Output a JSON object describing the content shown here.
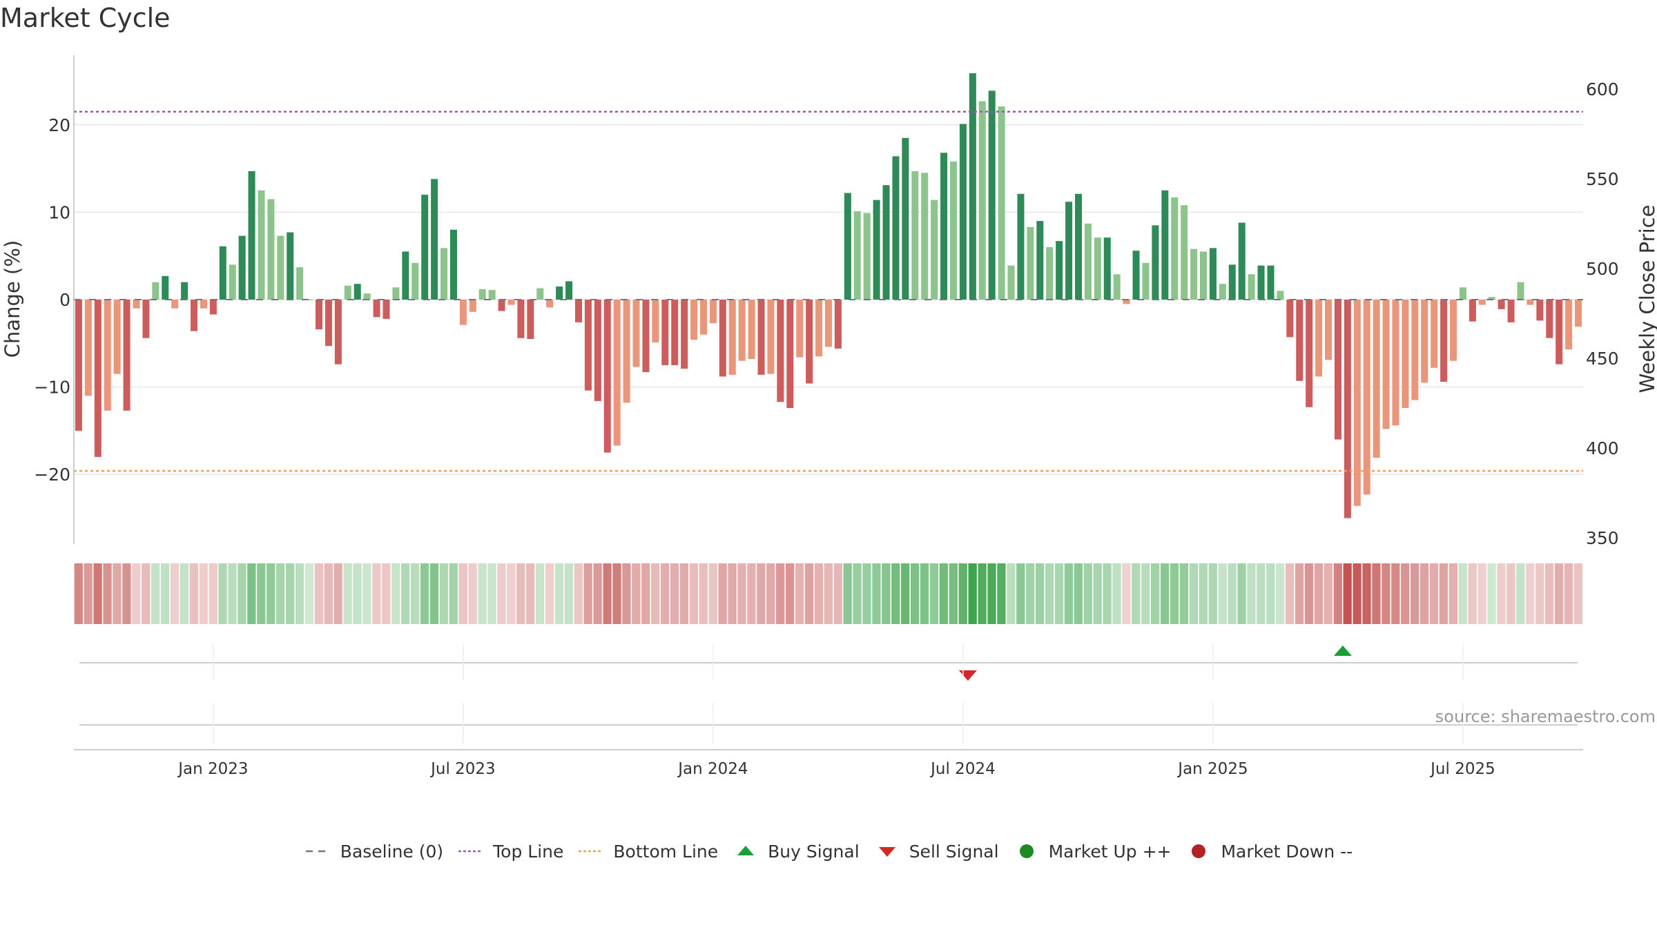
{
  "title": "Market Cycle",
  "source_label": "source: sharemaestro.com",
  "colors": {
    "up_dark": "#2e8b57",
    "up_light": "#8cc48c",
    "down_dark": "#cd5c5c",
    "down_light": "#e9967a",
    "top_line": "#9b59b6",
    "bottom_line": "#f0a050",
    "buy": "#1a9e3a",
    "sell": "#d62728",
    "market_up": "#1e8b22",
    "market_down": "#b22222",
    "baseline": "#777777"
  },
  "legend": [
    {
      "label": "Baseline (0)",
      "symbol": "dash-gray"
    },
    {
      "label": "Top Line",
      "symbol": "dot-purple"
    },
    {
      "label": "Bottom Line",
      "symbol": "dot-orange"
    },
    {
      "label": "Buy Signal",
      "symbol": "triangle-up-green"
    },
    {
      "label": "Sell Signal",
      "symbol": "triangle-down-red"
    },
    {
      "label": "Market Up ++",
      "symbol": "circle-green"
    },
    {
      "label": "Market Down --",
      "symbol": "circle-red"
    }
  ],
  "chart_data": {
    "type": "bar",
    "ylabel": "Change (%)",
    "y2label": "Weekly Close Price",
    "ylim": [
      -28,
      28
    ],
    "y_ticks": [
      -20,
      -10,
      0,
      10,
      20
    ],
    "y2lim": [
      350,
      610
    ],
    "y2_ticks": [
      350,
      400,
      450,
      500,
      550,
      600
    ],
    "x_tick_labels": [
      "Jan 2023",
      "Jul 2023",
      "Jan 2024",
      "Jul 2024",
      "Jan 2025",
      "Jul 2025"
    ],
    "x_tick_bar_index": [
      14.5,
      40.5,
      66.5,
      92.5,
      118.5,
      144.5
    ],
    "top_line": 21.5,
    "bottom_line": -19.6,
    "values": [
      -15,
      -11,
      -18,
      -12.7,
      -8.5,
      -12.7,
      -1,
      -4.4,
      2,
      2.7,
      -1,
      2,
      -3.6,
      -1,
      -1.7,
      6.1,
      4,
      7.3,
      14.7,
      12.5,
      11.5,
      7.3,
      7.7,
      3.7,
      0,
      -3.4,
      -5.3,
      -7.4,
      1.6,
      1.8,
      0.7,
      -2,
      -2.2,
      1.4,
      5.5,
      4.2,
      12,
      13.8,
      5.9,
      8,
      -2.9,
      -1.4,
      1.2,
      1.1,
      -1.3,
      -0.6,
      -4.4,
      -4.5,
      1.3,
      -0.9,
      1.5,
      2.1,
      -2.6,
      -10.4,
      -11.6,
      -17.5,
      -16.7,
      -11.8,
      -7.7,
      -8.3,
      -4.9,
      -7.5,
      -7.5,
      -7.9,
      -4.6,
      -4,
      -2.7,
      -8.8,
      -8.6,
      -7,
      -6.8,
      -8.6,
      -8.5,
      -11.7,
      -12.4,
      -6.6,
      -9.6,
      -6.5,
      -5.4,
      -5.6,
      12.2,
      10.1,
      9.9,
      11.4,
      13.1,
      16.4,
      18.5,
      14.7,
      14.5,
      11.4,
      16.8,
      15.8,
      20.1,
      25.9,
      22.7,
      23.9,
      22.1,
      3.9,
      12.1,
      8.3,
      9,
      6,
      6.7,
      11.2,
      12.1,
      8.7,
      7.1,
      7.1,
      2.9,
      -0.5,
      5.6,
      4.2,
      8.5,
      12.5,
      11.7,
      10.8,
      5.8,
      5.5,
      5.9,
      1.8,
      4,
      8.8,
      2.9,
      3.9,
      3.9,
      1,
      -4.3,
      -9.3,
      -12.3,
      -8.8,
      -6.9,
      -16,
      -25,
      -23.6,
      -22.3,
      -18.1,
      -14.8,
      -14.4,
      -12.4,
      -11.5,
      -9.5,
      -7.8,
      -9.4,
      -7,
      1.4,
      -2.5,
      -0.6,
      0.3,
      -1.1,
      -2.6,
      2,
      -0.6,
      -2.4,
      -4.4,
      -7.4,
      -5.7,
      -3.1
    ]
  }
}
